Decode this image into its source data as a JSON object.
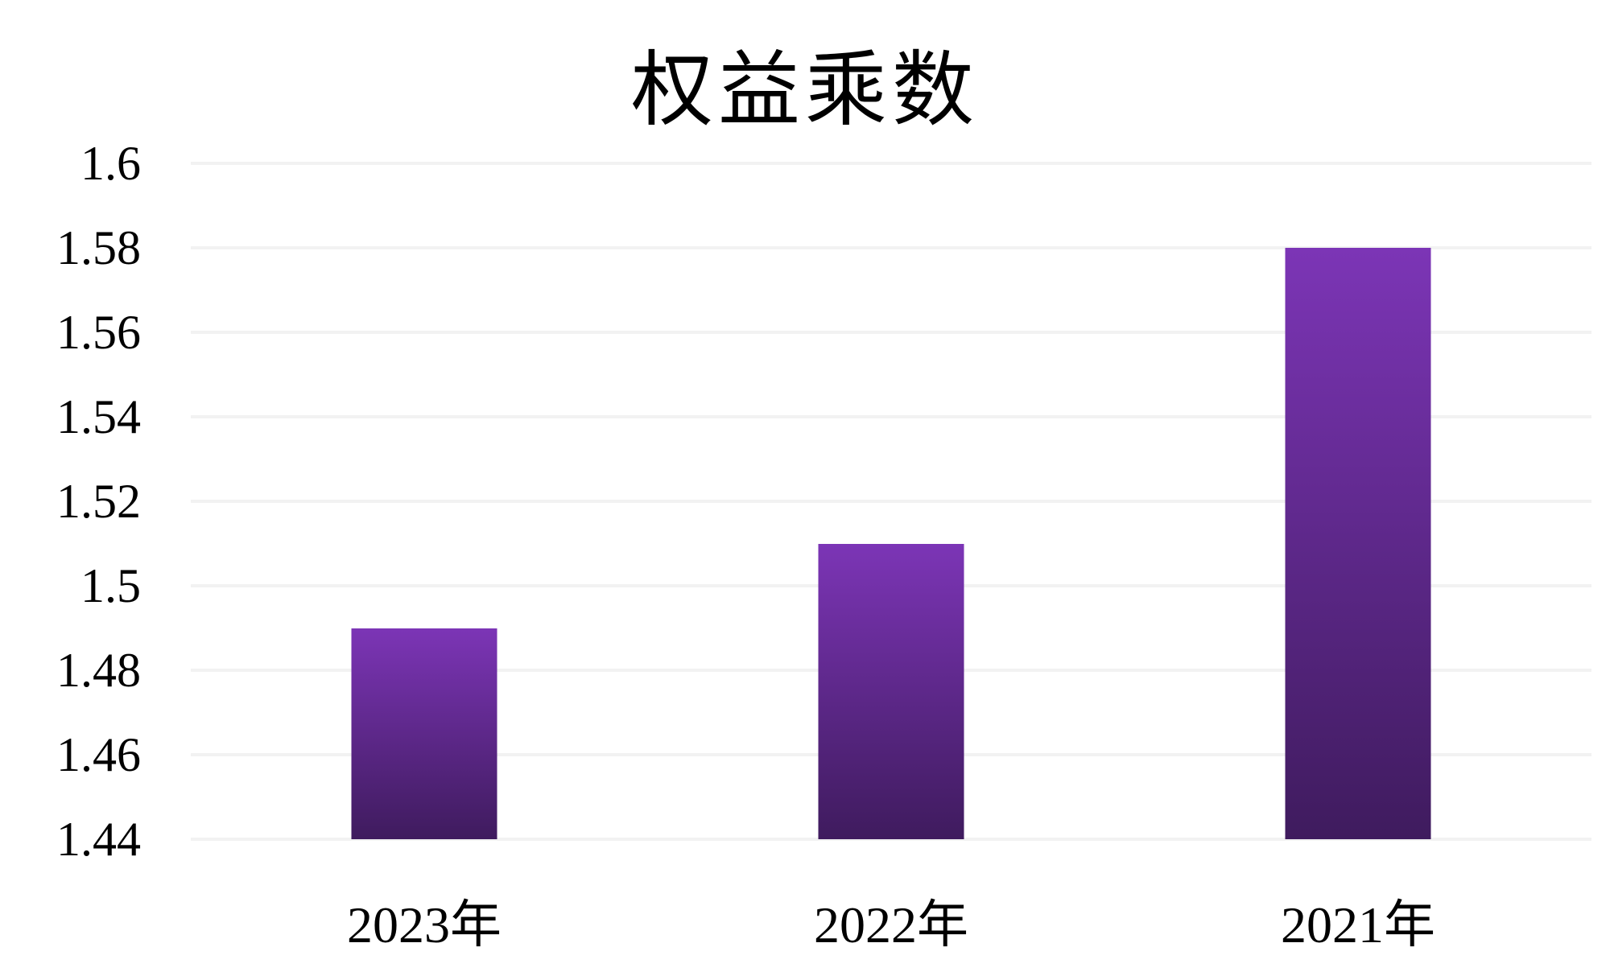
{
  "chart_data": {
    "type": "bar",
    "title": "权益乘数",
    "categories": [
      "2023年",
      "2022年",
      "2021年"
    ],
    "values": [
      1.49,
      1.51,
      1.58
    ],
    "xlabel": "",
    "ylabel": "",
    "ylim": [
      1.44,
      1.6
    ],
    "ytick_step": 0.02,
    "ytick_labels_top_to_bottom": [
      "1.6",
      "1.58",
      "1.56",
      "1.54",
      "1.52",
      "1.5",
      "1.48",
      "1.46",
      "1.44"
    ],
    "grid": "horizontal",
    "legend": "none",
    "colors": {
      "background": "#ffffff",
      "text": "#000000",
      "gridline": "#f2f2f2",
      "bar_gradient_top": "#7c35b6",
      "bar_gradient_bottom": "#3f1b5e"
    }
  }
}
